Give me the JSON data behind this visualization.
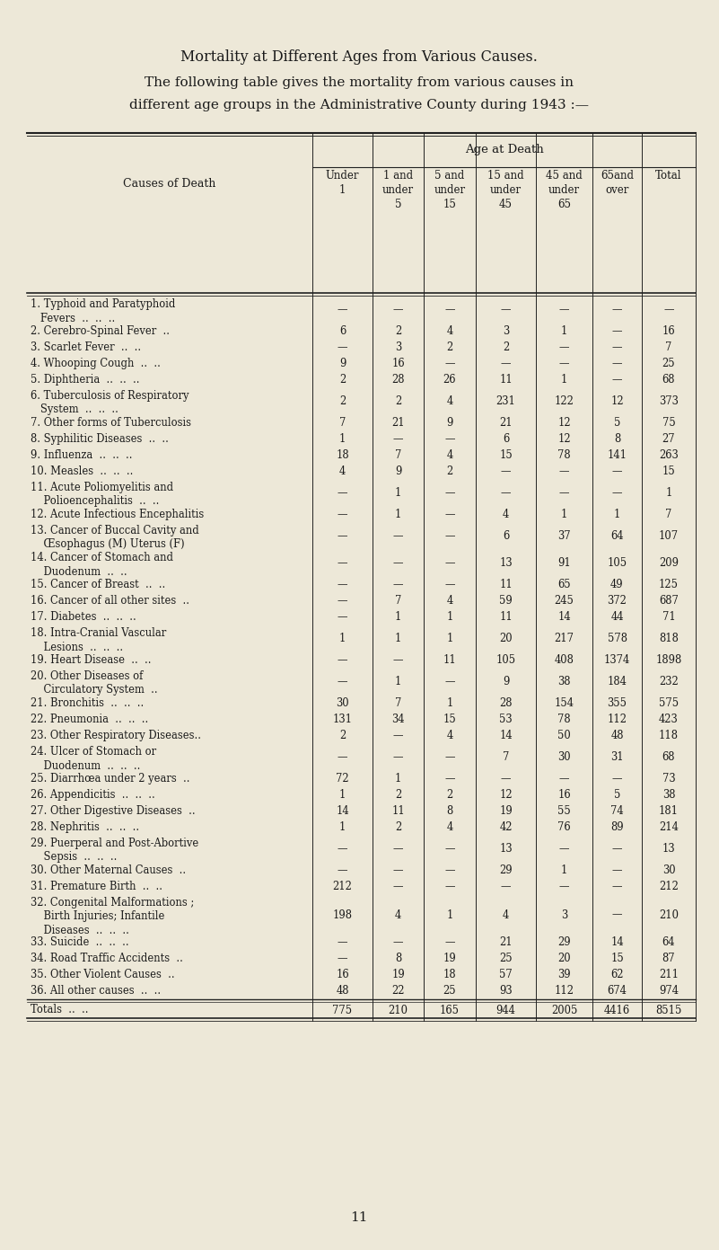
{
  "title": "Mortality at Different Ages from Various Causes.",
  "subtitle1": "The following table gives the mortality from various causes in",
  "subtitle2": "different age groups in the Administrative County during 1943 :—",
  "age_header": "Age at Death",
  "causes_header": "Causes of Death",
  "bg_color": "#ede8d8",
  "text_color": "#1a1a1a",
  "line_color": "#222222",
  "col_headers": [
    [
      "Under",
      "1"
    ],
    [
      "1 and",
      "under",
      "5"
    ],
    [
      "5 and",
      "under",
      "15"
    ],
    [
      "15 and",
      "under",
      "45"
    ],
    [
      "45 and",
      "under",
      "65"
    ],
    [
      "65and",
      "over"
    ],
    [
      "Total"
    ]
  ],
  "rows": [
    {
      "cause": [
        "1. Typhoid and Paratyphoid",
        "   Fevers  ..  ..  .."
      ],
      "vals": [
        "—",
        "—",
        "—",
        "—",
        "—",
        "—",
        "—"
      ]
    },
    {
      "cause": [
        "2. Cerebro-Spinal Fever  .."
      ],
      "vals": [
        "6",
        "2",
        "4",
        "3",
        "1",
        "—",
        "16"
      ]
    },
    {
      "cause": [
        "3. Scarlet Fever  ..  .."
      ],
      "vals": [
        "—",
        "3",
        "2",
        "2",
        "—",
        "—",
        "7"
      ]
    },
    {
      "cause": [
        "4. Whooping Cough  ..  .."
      ],
      "vals": [
        "9",
        "16",
        "—",
        "—",
        "—",
        "—",
        "25"
      ]
    },
    {
      "cause": [
        "5. Diphtheria  ..  ..  .."
      ],
      "vals": [
        "2",
        "28",
        "26",
        "11",
        "1",
        "—",
        "68"
      ]
    },
    {
      "cause": [
        "6. Tuberculosis of Respiratory",
        "   System  ..  ..  .."
      ],
      "vals": [
        "2",
        "2",
        "4",
        "231",
        "122",
        "12",
        "373"
      ]
    },
    {
      "cause": [
        "7. Other forms of Tuberculosis"
      ],
      "vals": [
        "7",
        "21",
        "9",
        "21",
        "12",
        "5",
        "75"
      ]
    },
    {
      "cause": [
        "8. Syphilitic Diseases  ..  .."
      ],
      "vals": [
        "1",
        "—",
        "—",
        "6",
        "12",
        "8",
        "27"
      ]
    },
    {
      "cause": [
        "9. Influenza  ..  ..  .."
      ],
      "vals": [
        "18",
        "7",
        "4",
        "15",
        "78",
        "141",
        "263"
      ]
    },
    {
      "cause": [
        "10. Measles  ..  ..  .."
      ],
      "vals": [
        "4",
        "9",
        "2",
        "—",
        "—",
        "—",
        "15"
      ]
    },
    {
      "cause": [
        "11. Acute Poliomyelitis and",
        "    Polioencephalitis  ..  .."
      ],
      "vals": [
        "—",
        "1",
        "—",
        "—",
        "—",
        "—",
        "1"
      ]
    },
    {
      "cause": [
        "12. Acute Infectious Encephalitis"
      ],
      "vals": [
        "—",
        "1",
        "—",
        "4",
        "1",
        "1",
        "7"
      ]
    },
    {
      "cause": [
        "13. Cancer of Buccal Cavity and",
        "    Œsophagus (M) Uterus (F)"
      ],
      "vals": [
        "—",
        "—",
        "—",
        "6",
        "37",
        "64",
        "107"
      ]
    },
    {
      "cause": [
        "14. Cancer of Stomach and",
        "    Duodenum  ..  .."
      ],
      "vals": [
        "—",
        "—",
        "—",
        "13",
        "91",
        "105",
        "209"
      ]
    },
    {
      "cause": [
        "15. Cancer of Breast  ..  .."
      ],
      "vals": [
        "—",
        "—",
        "—",
        "11",
        "65",
        "49",
        "125"
      ]
    },
    {
      "cause": [
        "16. Cancer of all other sites  .."
      ],
      "vals": [
        "—",
        "7",
        "4",
        "59",
        "245",
        "372",
        "687"
      ]
    },
    {
      "cause": [
        "17. Diabetes  ..  ..  .."
      ],
      "vals": [
        "—",
        "1",
        "1",
        "11",
        "14",
        "44",
        "71"
      ]
    },
    {
      "cause": [
        "18. Intra-Cranial Vascular",
        "    Lesions  ..  ..  .."
      ],
      "vals": [
        "1",
        "1",
        "1",
        "20",
        "217",
        "578",
        "818"
      ]
    },
    {
      "cause": [
        "19. Heart Disease  ..  .."
      ],
      "vals": [
        "—",
        "—",
        "11",
        "105",
        "408",
        "1374",
        "1898"
      ]
    },
    {
      "cause": [
        "20. Other Diseases of",
        "    Circulatory System  .."
      ],
      "vals": [
        "—",
        "1",
        "—",
        "9",
        "38",
        "184",
        "232"
      ]
    },
    {
      "cause": [
        "21. Bronchitis  ..  ..  .."
      ],
      "vals": [
        "30",
        "7",
        "1",
        "28",
        "154",
        "355",
        "575"
      ]
    },
    {
      "cause": [
        "22. Pneumonia  ..  ..  .."
      ],
      "vals": [
        "131",
        "34",
        "15",
        "53",
        "78",
        "112",
        "423"
      ]
    },
    {
      "cause": [
        "23. Other Respiratory Diseases.."
      ],
      "vals": [
        "2",
        "—",
        "4",
        "14",
        "50",
        "48",
        "118"
      ]
    },
    {
      "cause": [
        "24. Ulcer of Stomach or",
        "    Duodenum  ..  ..  .."
      ],
      "vals": [
        "—",
        "—",
        "—",
        "7",
        "30",
        "31",
        "68"
      ]
    },
    {
      "cause": [
        "25. Diarrhœa under 2 years  .."
      ],
      "vals": [
        "72",
        "1",
        "—",
        "—",
        "—",
        "—",
        "73"
      ]
    },
    {
      "cause": [
        "26. Appendicitis  ..  ..  .."
      ],
      "vals": [
        "1",
        "2",
        "2",
        "12",
        "16",
        "5",
        "38"
      ]
    },
    {
      "cause": [
        "27. Other Digestive Diseases  .."
      ],
      "vals": [
        "14",
        "11",
        "8",
        "19",
        "55",
        "74",
        "181"
      ]
    },
    {
      "cause": [
        "28. Nephritis  ..  ..  .."
      ],
      "vals": [
        "1",
        "2",
        "4",
        "42",
        "76",
        "89",
        "214"
      ]
    },
    {
      "cause": [
        "29. Puerperal and Post-Abortive",
        "    Sepsis  ..  ..  .."
      ],
      "vals": [
        "—",
        "—",
        "—",
        "13",
        "—",
        "—",
        "13"
      ]
    },
    {
      "cause": [
        "30. Other Maternal Causes  .."
      ],
      "vals": [
        "—",
        "—",
        "—",
        "29",
        "1",
        "—",
        "30"
      ]
    },
    {
      "cause": [
        "31. Premature Birth  ..  .."
      ],
      "vals": [
        "212",
        "—",
        "—",
        "—",
        "—",
        "—",
        "212"
      ]
    },
    {
      "cause": [
        "32. Congenital Malformations ;",
        "    Birth Injuries; Infantile",
        "    Diseases  ..  ..  .."
      ],
      "vals": [
        "198",
        "4",
        "1",
        "4",
        "3",
        "—",
        "210"
      ]
    },
    {
      "cause": [
        "33. Suicide  ..  ..  .."
      ],
      "vals": [
        "—",
        "—",
        "—",
        "21",
        "29",
        "14",
        "64"
      ]
    },
    {
      "cause": [
        "34. Road Traffic Accidents  .."
      ],
      "vals": [
        "—",
        "8",
        "19",
        "25",
        "20",
        "15",
        "87"
      ]
    },
    {
      "cause": [
        "35. Other Violent Causes  .."
      ],
      "vals": [
        "16",
        "19",
        "18",
        "57",
        "39",
        "62",
        "211"
      ]
    },
    {
      "cause": [
        "36. All other causes  ..  .."
      ],
      "vals": [
        "48",
        "22",
        "25",
        "93",
        "112",
        "674",
        "974"
      ]
    },
    {
      "cause": [
        "Totals  ..  .."
      ],
      "vals": [
        "775",
        "210",
        "165",
        "944",
        "2005",
        "4416",
        "8515"
      ],
      "is_total": true
    }
  ]
}
